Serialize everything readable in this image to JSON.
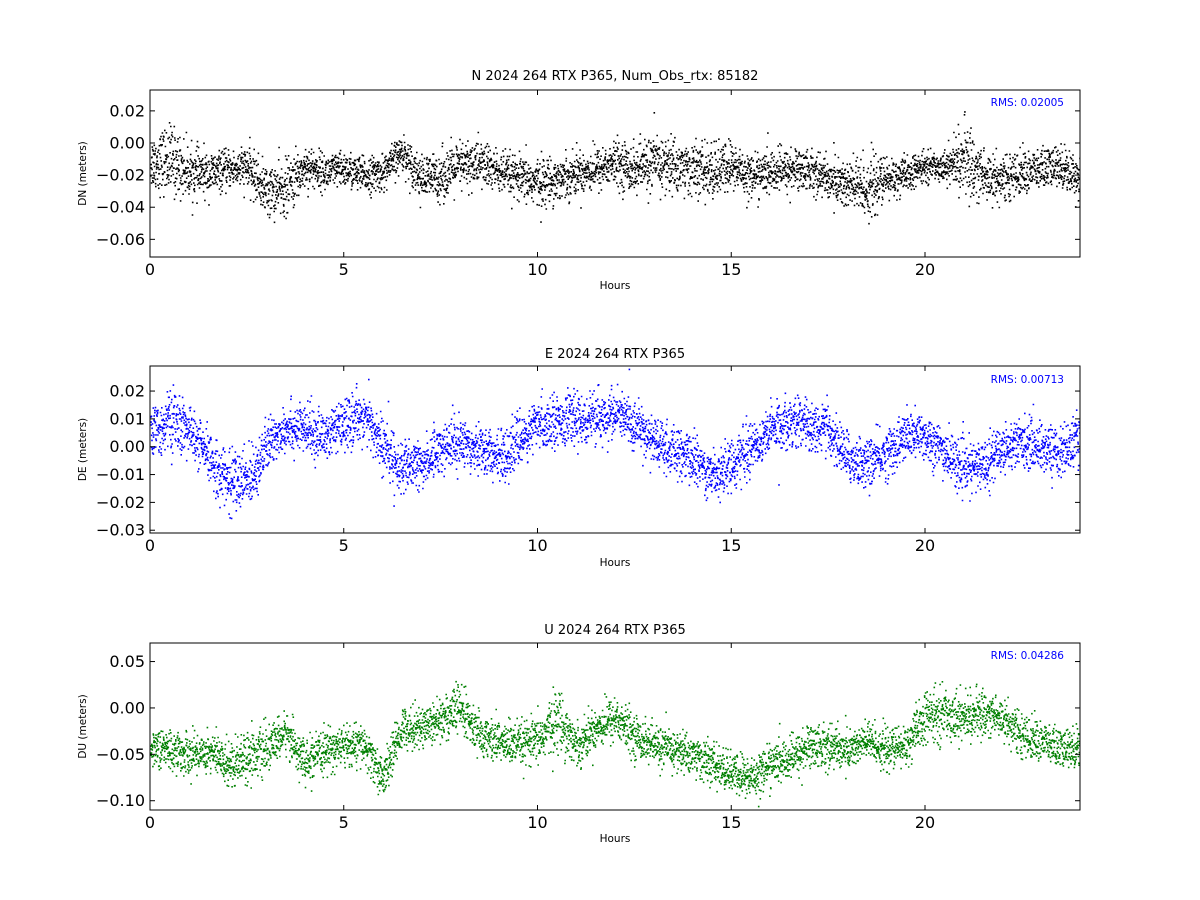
{
  "chart_data": [
    {
      "type": "scatter",
      "title": "N 2024 264 RTX  P365, Num_Obs_rtx: 85182",
      "xlabel": "Hours",
      "ylabel": "DN (meters)",
      "xlim": [
        0,
        24
      ],
      "ylim": [
        -0.071,
        0.033
      ],
      "xticks": [
        0,
        5,
        10,
        15,
        20
      ],
      "yticks": [
        0.02,
        0.0,
        -0.02,
        -0.04,
        -0.06
      ],
      "ytick_labels": [
        "0.02",
        "0.00",
        "−0.02",
        "−0.04",
        "−0.06"
      ],
      "grid": false,
      "color": "#000000",
      "annotation": "RMS:  0.02005",
      "annotation_color": "#0000ff",
      "series": [
        {
          "x": [
            0,
            0.5,
            1,
            1.5,
            2,
            2.5,
            3,
            3.5,
            4,
            4.5,
            5,
            5.5,
            6,
            6.5,
            7,
            7.5,
            8,
            8.5,
            9,
            9.5,
            10,
            10.5,
            11,
            11.5,
            12,
            12.5,
            13,
            13.5,
            14,
            14.5,
            15,
            15.5,
            16,
            16.5,
            17,
            17.5,
            18,
            18.5,
            19,
            19.5,
            20,
            20.5,
            21,
            21.5,
            22,
            22.5,
            23,
            23.5,
            24
          ],
          "mean": [
            -0.012,
            -0.01,
            -0.018,
            -0.019,
            -0.016,
            -0.015,
            -0.03,
            -0.028,
            -0.014,
            -0.018,
            -0.016,
            -0.02,
            -0.018,
            -0.005,
            -0.022,
            -0.02,
            -0.014,
            -0.012,
            -0.018,
            -0.022,
            -0.024,
            -0.022,
            -0.018,
            -0.016,
            -0.012,
            -0.016,
            -0.012,
            -0.014,
            -0.016,
            -0.018,
            -0.014,
            -0.02,
            -0.018,
            -0.016,
            -0.016,
            -0.022,
            -0.026,
            -0.028,
            -0.022,
            -0.02,
            -0.014,
            -0.014,
            -0.01,
            -0.02,
            -0.022,
            -0.018,
            -0.016,
            -0.014,
            -0.022
          ],
          "spread": [
            0.014,
            0.02,
            0.014,
            0.012,
            0.01,
            0.012,
            0.014,
            0.016,
            0.012,
            0.01,
            0.01,
            0.01,
            0.01,
            0.01,
            0.012,
            0.014,
            0.014,
            0.014,
            0.012,
            0.012,
            0.014,
            0.012,
            0.012,
            0.012,
            0.012,
            0.014,
            0.016,
            0.016,
            0.014,
            0.016,
            0.014,
            0.012,
            0.012,
            0.012,
            0.012,
            0.012,
            0.016,
            0.018,
            0.012,
            0.01,
            0.008,
            0.008,
            0.02,
            0.016,
            0.012,
            0.012,
            0.012,
            0.012,
            0.012
          ]
        }
      ]
    },
    {
      "type": "scatter",
      "title": "E 2024 264 RTX  P365",
      "xlabel": "Hours",
      "ylabel": "DE (meters)",
      "xlim": [
        0,
        24
      ],
      "ylim": [
        -0.031,
        0.029
      ],
      "xticks": [
        0,
        5,
        10,
        15,
        20
      ],
      "yticks": [
        0.02,
        0.01,
        0.0,
        -0.01,
        -0.02,
        -0.03
      ],
      "ytick_labels": [
        "0.02",
        "0.01",
        "0.00",
        "−0.01",
        "−0.02",
        "−0.03"
      ],
      "grid": false,
      "color": "#0000ff",
      "annotation": "RMS:  0.00713",
      "annotation_color": "#0000ff",
      "series": [
        {
          "x": [
            0,
            0.5,
            1,
            1.5,
            2,
            2.5,
            3,
            3.5,
            4,
            4.5,
            5,
            5.5,
            6,
            6.5,
            7,
            7.5,
            8,
            8.5,
            9,
            9.5,
            10,
            10.5,
            11,
            11.5,
            12,
            12.5,
            13,
            13.5,
            14,
            14.5,
            15,
            15.5,
            16,
            16.5,
            17,
            17.5,
            18,
            18.5,
            19,
            19.5,
            20,
            20.5,
            21,
            21.5,
            22,
            22.5,
            23,
            23.5,
            24
          ],
          "mean": [
            0.004,
            0.01,
            0.006,
            -0.004,
            -0.012,
            -0.012,
            0.0,
            0.008,
            0.006,
            0.004,
            0.008,
            0.012,
            0.0,
            -0.008,
            -0.006,
            0.0,
            0.002,
            0.0,
            -0.004,
            0.002,
            0.008,
            0.01,
            0.01,
            0.01,
            0.012,
            0.008,
            0.002,
            -0.002,
            -0.004,
            -0.01,
            -0.006,
            0.0,
            0.006,
            0.01,
            0.008,
            0.006,
            -0.004,
            -0.006,
            -0.002,
            0.004,
            0.004,
            -0.002,
            -0.008,
            -0.006,
            0.0,
            0.002,
            0.0,
            -0.002,
            0.004
          ],
          "spread": [
            0.008,
            0.01,
            0.008,
            0.008,
            0.01,
            0.01,
            0.008,
            0.008,
            0.008,
            0.008,
            0.008,
            0.008,
            0.01,
            0.008,
            0.008,
            0.008,
            0.008,
            0.008,
            0.008,
            0.008,
            0.008,
            0.008,
            0.008,
            0.008,
            0.008,
            0.008,
            0.008,
            0.008,
            0.008,
            0.008,
            0.008,
            0.008,
            0.008,
            0.008,
            0.008,
            0.008,
            0.008,
            0.008,
            0.008,
            0.008,
            0.008,
            0.008,
            0.008,
            0.008,
            0.008,
            0.008,
            0.008,
            0.008,
            0.008
          ]
        }
      ]
    },
    {
      "type": "scatter",
      "title": "U 2024 264 RTX  P365",
      "xlabel": "Hours",
      "ylabel": "DU (meters)",
      "xlim": [
        0,
        24
      ],
      "ylim": [
        -0.11,
        0.07
      ],
      "xticks": [
        0,
        5,
        10,
        15,
        20
      ],
      "yticks": [
        0.05,
        0.0,
        -0.05,
        -0.1
      ],
      "ytick_labels": [
        "0.05",
        "0.00",
        "−0.05",
        "−0.10"
      ],
      "grid": false,
      "color": "#008000",
      "annotation": "RMS:  0.04286",
      "annotation_color": "#0000ff",
      "series": [
        {
          "x": [
            0,
            0.5,
            1,
            1.5,
            2,
            2.5,
            3,
            3.5,
            4,
            4.5,
            5,
            5.5,
            6,
            6.5,
            7,
            7.5,
            8,
            8.5,
            9,
            9.5,
            10,
            10.5,
            11,
            11.5,
            12,
            12.5,
            13,
            13.5,
            14,
            14.5,
            15,
            15.5,
            16,
            16.5,
            17,
            17.5,
            18,
            18.5,
            19,
            19.5,
            20,
            20.5,
            21,
            21.5,
            22,
            22.5,
            23,
            23.5,
            24
          ],
          "mean": [
            -0.04,
            -0.045,
            -0.05,
            -0.045,
            -0.06,
            -0.05,
            -0.045,
            -0.025,
            -0.06,
            -0.045,
            -0.04,
            -0.04,
            -0.075,
            -0.02,
            -0.02,
            -0.01,
            0.0,
            -0.03,
            -0.035,
            -0.04,
            -0.035,
            -0.01,
            -0.04,
            -0.02,
            -0.01,
            -0.03,
            -0.04,
            -0.045,
            -0.05,
            -0.06,
            -0.07,
            -0.075,
            -0.06,
            -0.055,
            -0.04,
            -0.04,
            -0.045,
            -0.035,
            -0.045,
            -0.04,
            -0.01,
            -0.005,
            -0.01,
            -0.005,
            -0.01,
            -0.03,
            -0.035,
            -0.045,
            -0.04
          ],
          "spread": [
            0.018,
            0.02,
            0.02,
            0.02,
            0.022,
            0.025,
            0.02,
            0.02,
            0.02,
            0.02,
            0.02,
            0.02,
            0.02,
            0.02,
            0.02,
            0.022,
            0.025,
            0.02,
            0.02,
            0.022,
            0.022,
            0.03,
            0.02,
            0.02,
            0.022,
            0.02,
            0.02,
            0.02,
            0.02,
            0.02,
            0.02,
            0.022,
            0.02,
            0.02,
            0.022,
            0.022,
            0.02,
            0.02,
            0.02,
            0.02,
            0.025,
            0.025,
            0.022,
            0.022,
            0.02,
            0.02,
            0.02,
            0.02,
            0.02
          ]
        }
      ]
    }
  ]
}
